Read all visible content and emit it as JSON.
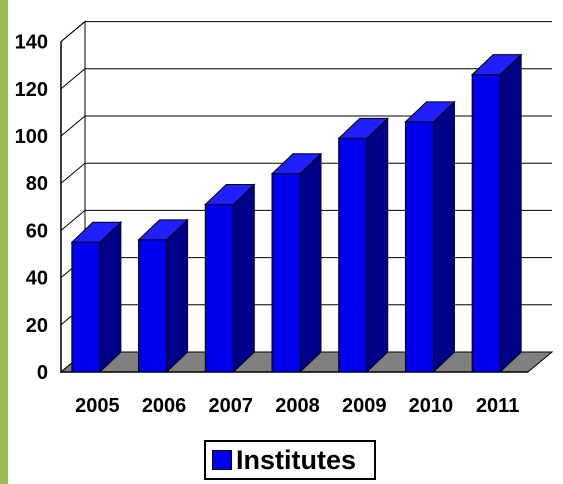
{
  "colors": {
    "accent_left_bar": "#9bbb59",
    "bar_front": "#0000ee",
    "bar_side": "#000088",
    "bar_top": "#2020ff",
    "floor": "#808080",
    "gridline": "#000000",
    "text": "#000000"
  },
  "chart_data": {
    "type": "bar",
    "categories": [
      "2005",
      "2006",
      "2007",
      "2008",
      "2009",
      "2010",
      "2011"
    ],
    "series": [
      {
        "name": "Institutes",
        "values": [
          55,
          56,
          71,
          84,
          99,
          106,
          126
        ]
      }
    ],
    "title": "",
    "xlabel": "",
    "ylabel": "",
    "ylim": [
      0,
      140
    ],
    "yticks": [
      "0",
      "20",
      "40",
      "60",
      "80",
      "100",
      "120",
      "140"
    ],
    "grid": true,
    "legend": "bottom",
    "style": "3d-column"
  }
}
